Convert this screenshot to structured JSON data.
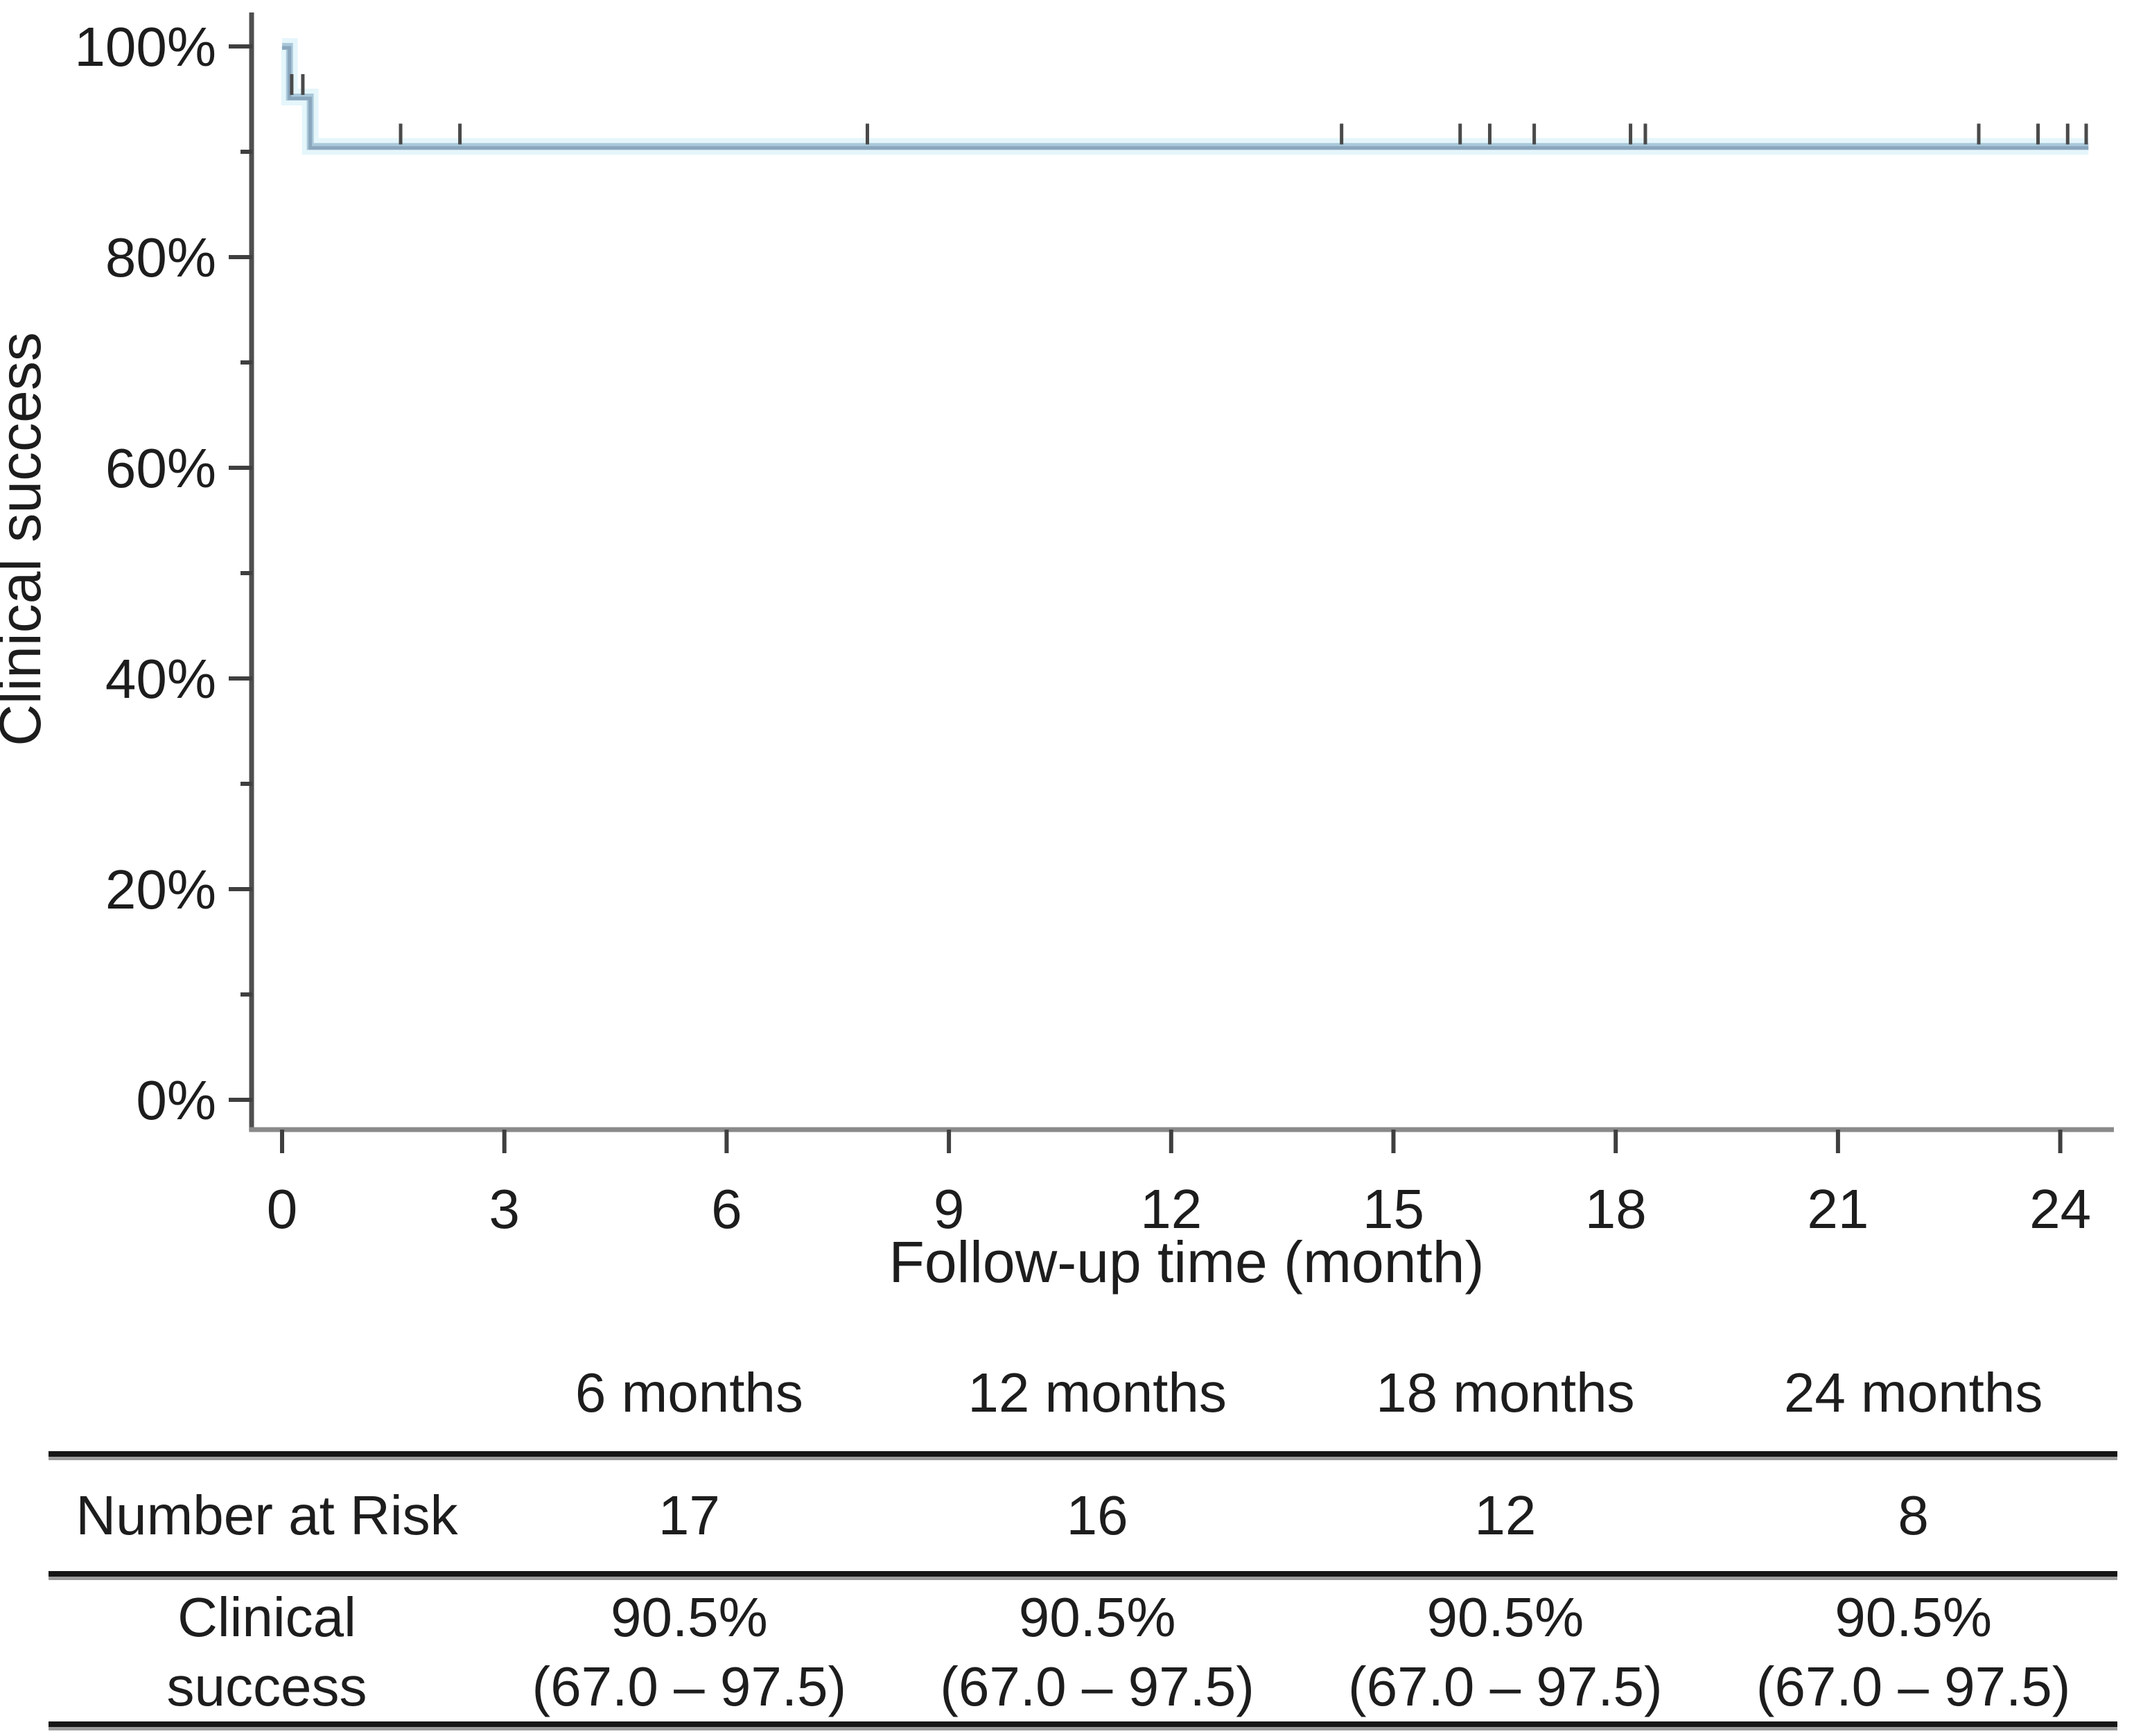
{
  "chart_data": {
    "type": "line",
    "subtype": "kaplan-meier-step-curve",
    "title": "",
    "xlabel": "Follow-up time (month)",
    "ylabel": "Clinical success",
    "xlim": [
      0,
      24.7
    ],
    "ylim": [
      0,
      100
    ],
    "grid": false,
    "legend_position": "none",
    "x_ticks": [
      0,
      3,
      6,
      9,
      12,
      15,
      18,
      21,
      24
    ],
    "x_tick_labels": [
      "0",
      "3",
      "6",
      "9",
      "12",
      "15",
      "18",
      "21",
      "24"
    ],
    "y_ticks_major": [
      0,
      20,
      40,
      60,
      80,
      100
    ],
    "y_tick_labels": [
      "0%",
      "20%",
      "40%",
      "60%",
      "80%",
      "100%"
    ],
    "y_ticks_minor": [
      10,
      30,
      50,
      70,
      90
    ],
    "colors": {
      "curve": "#8aa6bd",
      "curve_light": "#a9c8da",
      "curve_halo": "#e0f4fa",
      "censor_mark": "#4a4a4a",
      "x_axis": "#8a8a8a",
      "y_axis": "#4f4f4f",
      "tick": "#3f3f3f",
      "text": "#1d1d1d"
    },
    "series": [
      {
        "name": "Clinical success",
        "step_points": [
          {
            "t": 0.0,
            "s": 100.0
          },
          {
            "t": 0.1,
            "s": 95.2
          },
          {
            "t": 0.38,
            "s": 90.5
          },
          {
            "t": 24.38,
            "s": 90.5
          }
        ],
        "censor_marks": [
          {
            "t": 0.13,
            "s": 95.2
          },
          {
            "t": 0.28,
            "s": 95.2
          },
          {
            "t": 1.6,
            "s": 90.5
          },
          {
            "t": 2.4,
            "s": 90.5
          },
          {
            "t": 7.9,
            "s": 90.5
          },
          {
            "t": 14.3,
            "s": 90.5
          },
          {
            "t": 15.9,
            "s": 90.5
          },
          {
            "t": 16.3,
            "s": 90.5
          },
          {
            "t": 16.9,
            "s": 90.5
          },
          {
            "t": 18.2,
            "s": 90.5
          },
          {
            "t": 18.4,
            "s": 90.5
          },
          {
            "t": 22.9,
            "s": 90.5
          },
          {
            "t": 23.7,
            "s": 90.5
          },
          {
            "t": 24.1,
            "s": 90.5
          },
          {
            "t": 24.35,
            "s": 90.5
          }
        ]
      }
    ]
  },
  "risk_table": {
    "col_headers": [
      "6 months",
      "12 months",
      "18 months",
      "24 months"
    ],
    "rows": [
      {
        "label_lines": [
          "Number at Risk"
        ],
        "values": [
          [
            "17"
          ],
          [
            "16"
          ],
          [
            "12"
          ],
          [
            "8"
          ]
        ]
      },
      {
        "label_lines": [
          "Clinical",
          "success"
        ],
        "values": [
          [
            "90.5%",
            "(67.0 – 97.5)"
          ],
          [
            "90.5%",
            "(67.0 – 97.5)"
          ],
          [
            "90.5%",
            "(67.0 – 97.5)"
          ],
          [
            "90.5%",
            "(67.0 – 97.5)"
          ]
        ]
      }
    ]
  }
}
